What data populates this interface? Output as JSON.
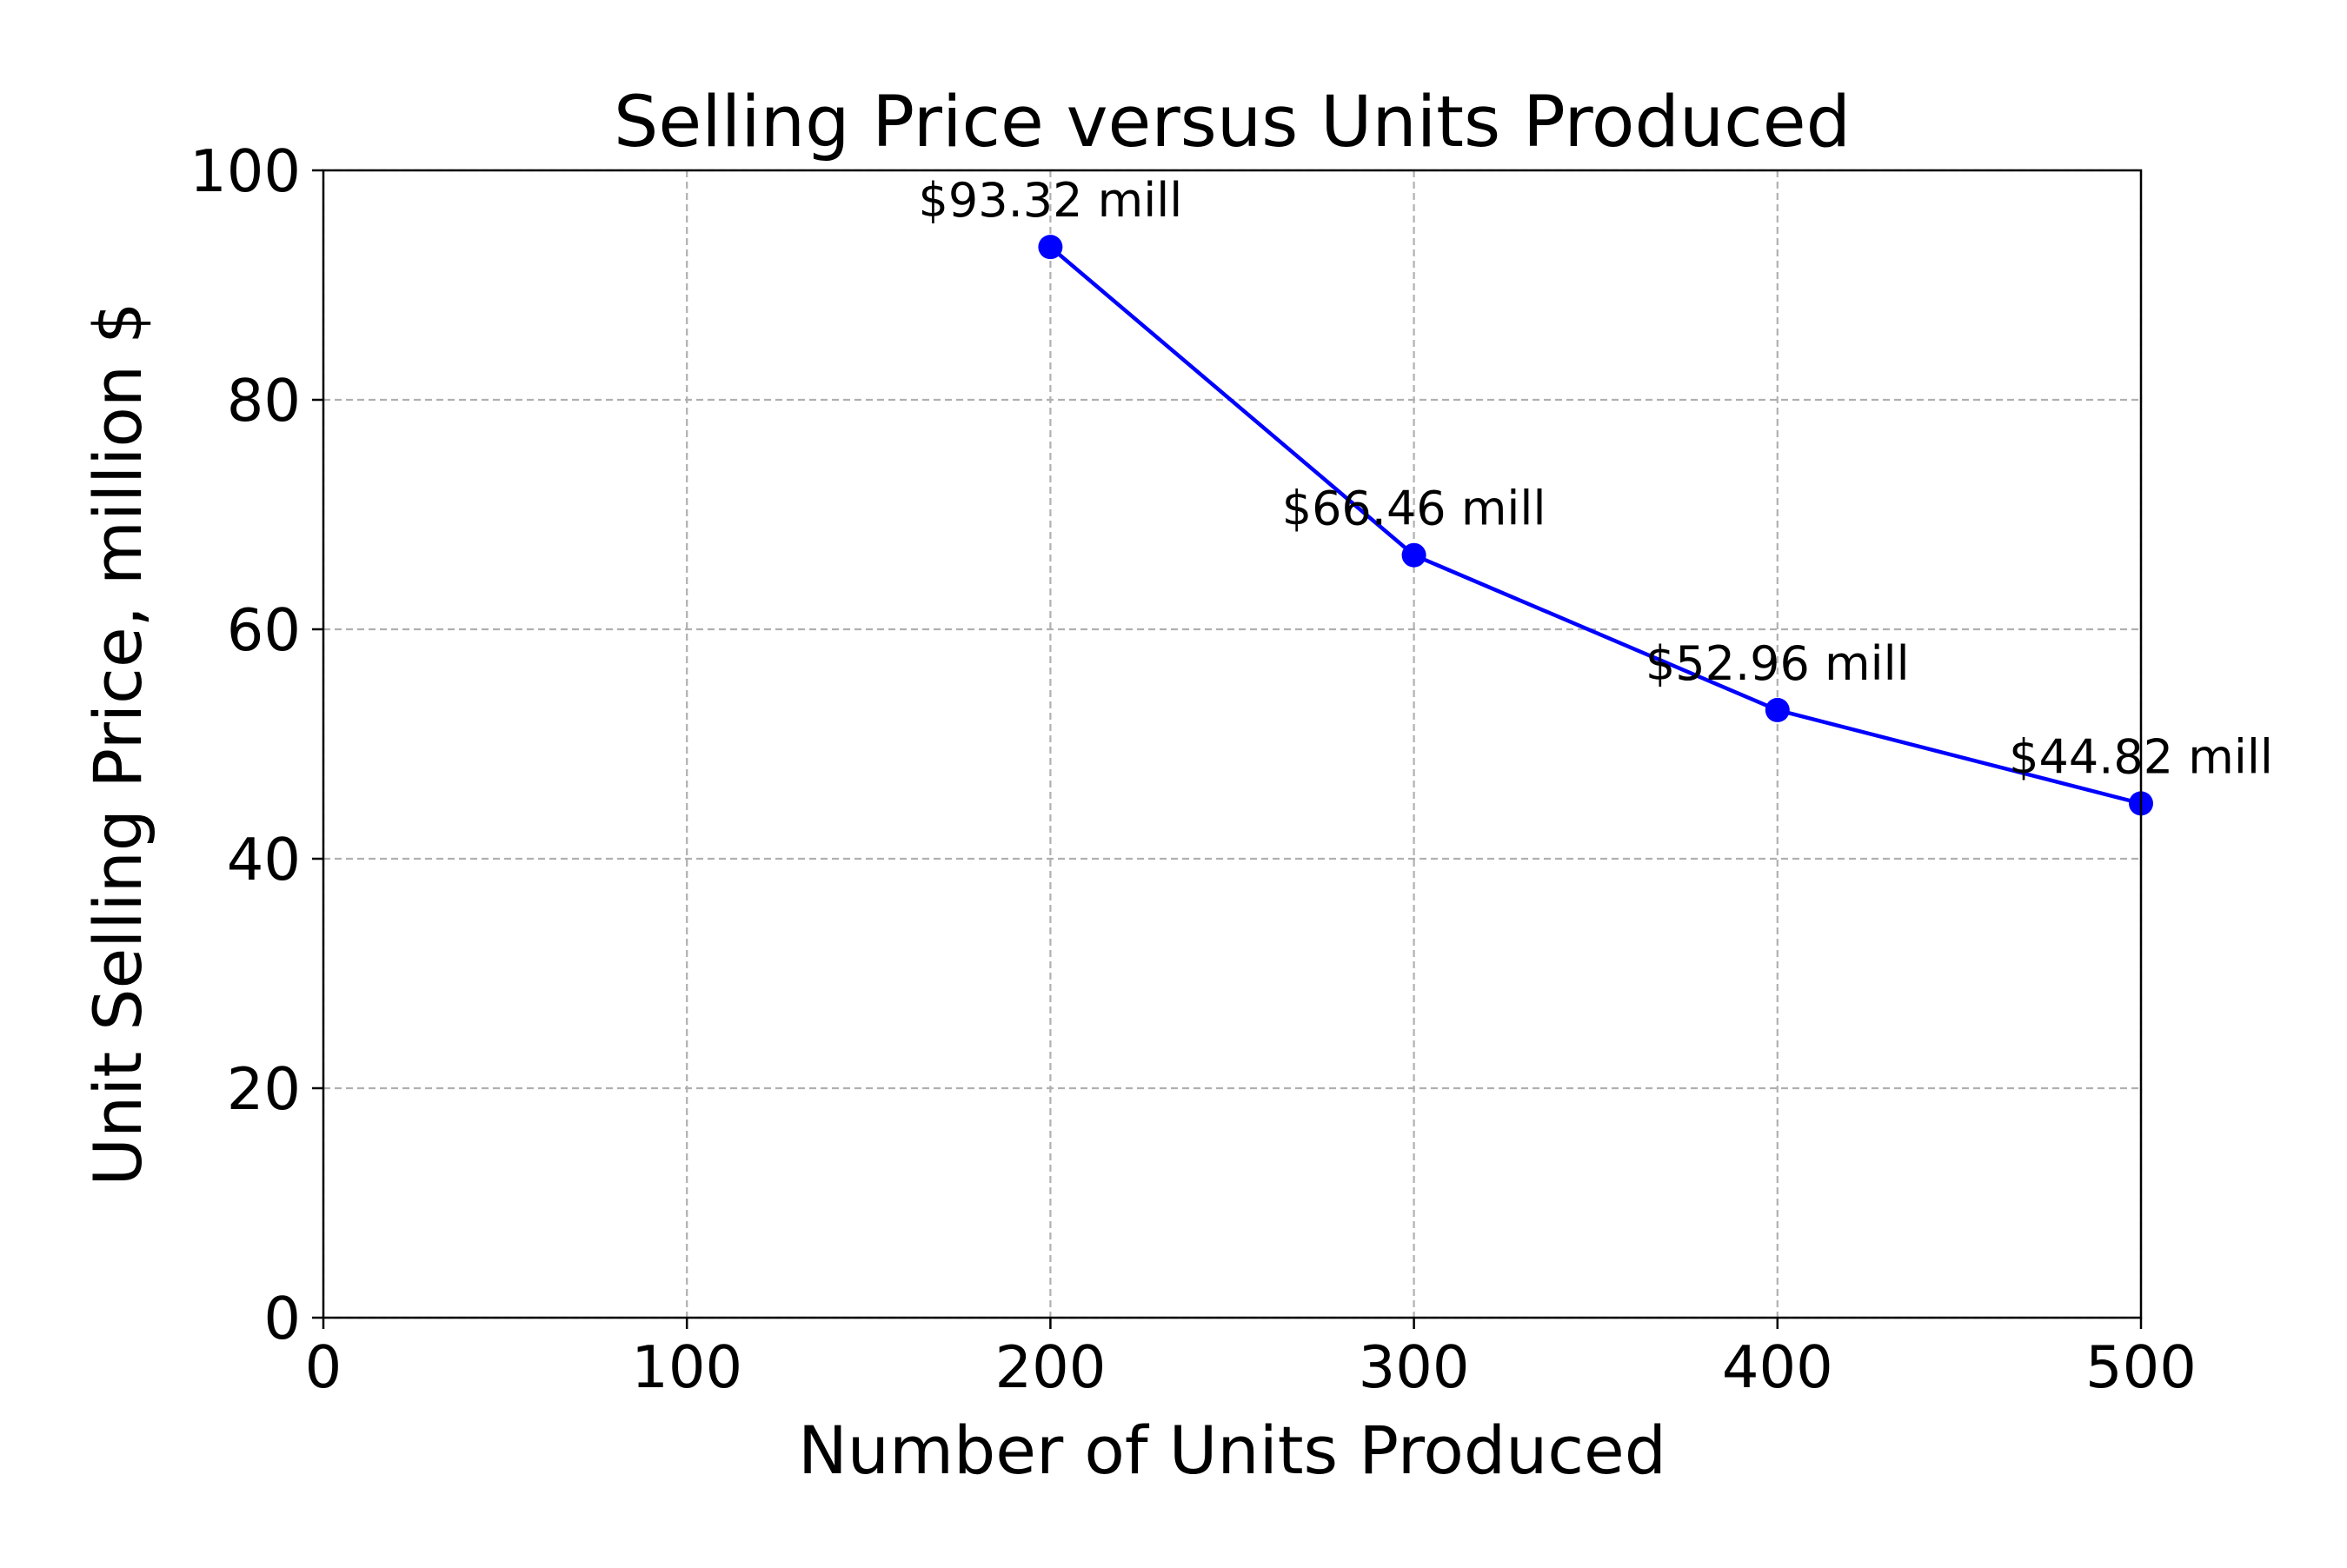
{
  "chart_data": {
    "type": "line",
    "title": "Selling Price versus Units Produced",
    "xlabel": "Number of Units Produced",
    "ylabel": "Unit Selling Price, million $",
    "xlim": [
      0,
      500
    ],
    "ylim": [
      0,
      100
    ],
    "xticks": [
      0,
      100,
      200,
      300,
      400,
      500
    ],
    "yticks": [
      0,
      20,
      40,
      60,
      80,
      100
    ],
    "xtick_labels": [
      "0",
      "100",
      "200",
      "300",
      "400",
      "500"
    ],
    "ytick_labels": [
      "0",
      "20",
      "40",
      "60",
      "80",
      "100"
    ],
    "grid": true,
    "series": [
      {
        "x": [
          200,
          300,
          400,
          500
        ],
        "y": [
          93.32,
          66.46,
          52.96,
          44.82
        ],
        "labels": [
          "$93.32 mill",
          "$66.46 mill",
          "$52.96 mill",
          "$44.82 mill"
        ],
        "color": "#0000ff",
        "marker": "circle"
      }
    ]
  }
}
